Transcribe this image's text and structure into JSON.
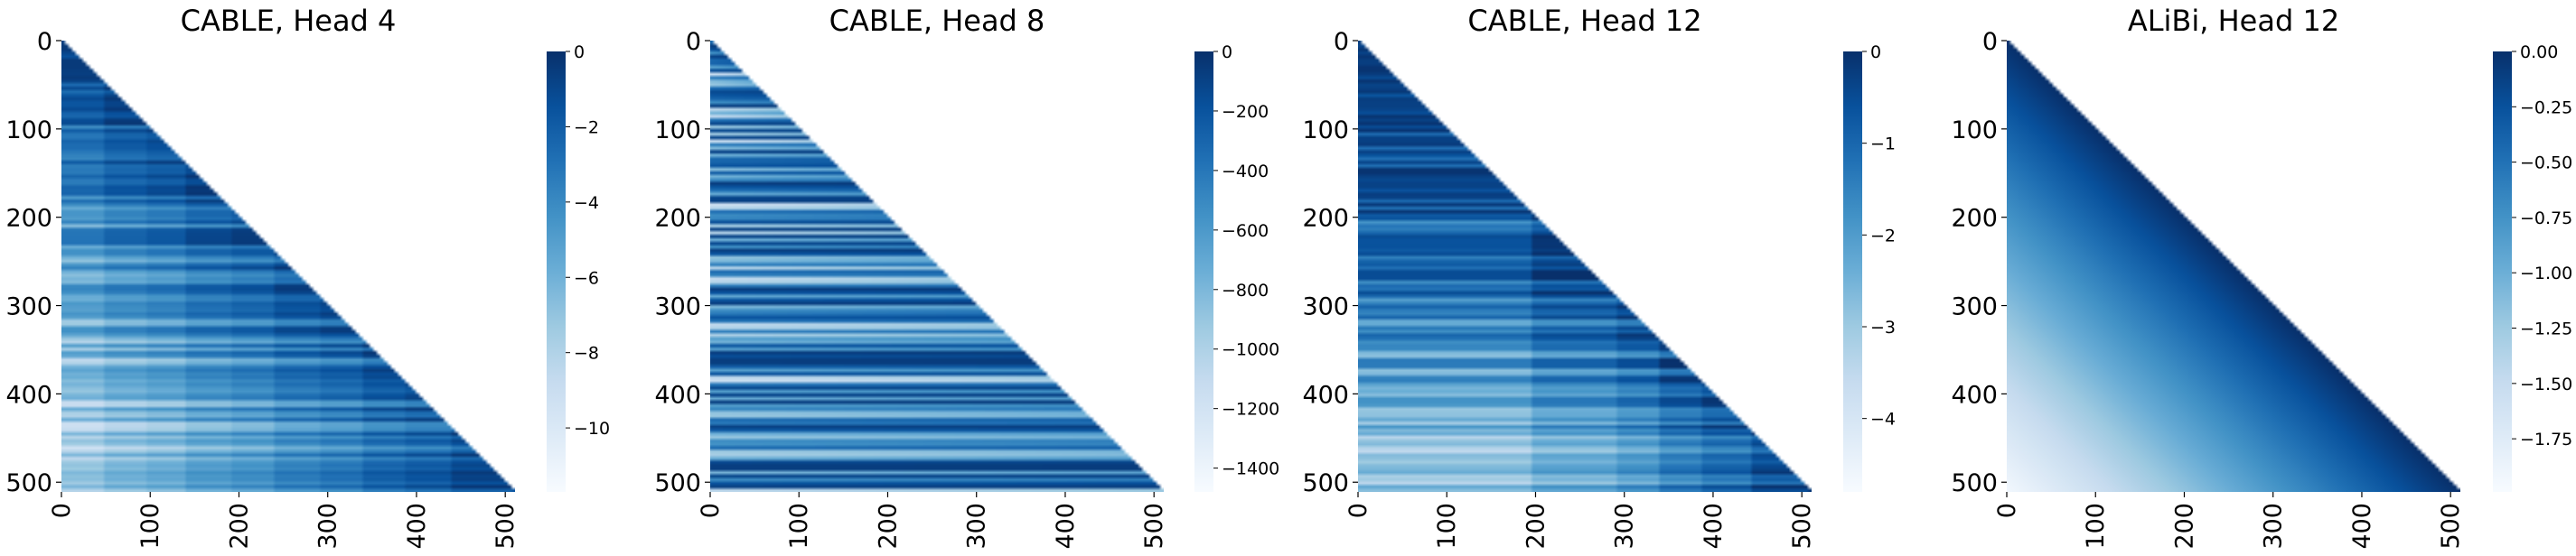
{
  "chart_data": [
    {
      "type": "heatmap",
      "title": "CABLE, Head 4",
      "x_ticks": [
        0,
        100,
        200,
        300,
        400,
        500
      ],
      "y_ticks": [
        0,
        100,
        200,
        300,
        400,
        500
      ],
      "xlim": [
        0,
        511
      ],
      "ylim": [
        0,
        511
      ],
      "mask": "lower-triangular (row >= column)",
      "colormap": "Blues_r",
      "colorbar": {
        "range": [
          -11.7,
          0
        ],
        "ticks": [
          0,
          -2,
          -4,
          -6,
          -8,
          -10
        ],
        "tick_labels": [
          "0",
          "−2",
          "−4",
          "−6",
          "−8",
          "−10"
        ]
      },
      "pattern": {
        "style": "block-steps",
        "steps": [
          0,
          45,
          95,
          140,
          190,
          240,
          290,
          340,
          390,
          440,
          510
        ],
        "row_texture": 0.85,
        "base": 0.02,
        "step_weight": 0.055,
        "seed": 4
      }
    },
    {
      "type": "heatmap",
      "title": "CABLE, Head 8",
      "x_ticks": [
        0,
        100,
        200,
        300,
        400,
        500
      ],
      "y_ticks": [
        0,
        100,
        200,
        300,
        400,
        500
      ],
      "xlim": [
        0,
        511
      ],
      "ylim": [
        0,
        511
      ],
      "mask": "lower-triangular (row >= column)",
      "colormap": "Blues_r",
      "colorbar": {
        "range": [
          -1480,
          0
        ],
        "ticks": [
          0,
          -200,
          -400,
          -600,
          -800,
          -1000,
          -1200,
          -1400
        ],
        "tick_labels": [
          "0",
          "−200",
          "−400",
          "−600",
          "−800",
          "−1000",
          "−1200",
          "−1400"
        ]
      },
      "pattern": {
        "style": "row-streaks",
        "steps": [],
        "row_texture": 1.0,
        "base": 0.05,
        "step_weight": 0,
        "seed": 8
      }
    },
    {
      "type": "heatmap",
      "title": "CABLE, Head 12",
      "x_ticks": [
        0,
        100,
        200,
        300,
        400,
        500
      ],
      "y_ticks": [
        0,
        100,
        200,
        300,
        400,
        500
      ],
      "xlim": [
        0,
        511
      ],
      "ylim": [
        0,
        511
      ],
      "mask": "lower-triangular (row >= column)",
      "colormap": "Blues_r",
      "colorbar": {
        "range": [
          -4.8,
          0
        ],
        "ticks": [
          0,
          -1,
          -2,
          -3,
          -4
        ],
        "tick_labels": [
          "0",
          "−1",
          "−2",
          "−3",
          "−4"
        ]
      },
      "pattern": {
        "style": "block-steps",
        "steps": [
          0,
          195,
          290,
          340,
          390,
          445,
          510
        ],
        "row_texture": 0.8,
        "base": 0.0,
        "step_weight": 0.09,
        "seed": 12
      }
    },
    {
      "type": "heatmap",
      "title": "ALiBi, Head 12",
      "x_ticks": [
        0,
        100,
        200,
        300,
        400,
        500
      ],
      "y_ticks": [
        0,
        100,
        200,
        300,
        400,
        500
      ],
      "xlim": [
        0,
        511
      ],
      "ylim": [
        0,
        511
      ],
      "mask": "lower-triangular (row >= column)",
      "colormap": "Blues_r",
      "colorbar": {
        "range": [
          -1.99,
          0
        ],
        "ticks": [
          0,
          -0.25,
          -0.5,
          -0.75,
          -1.0,
          -1.25,
          -1.5,
          -1.75
        ],
        "tick_labels": [
          "0.00",
          "−0.25",
          "−0.50",
          "−0.75",
          "−1.00",
          "−1.25",
          "−1.50",
          "−1.75"
        ]
      },
      "pattern": {
        "style": "linear-distance",
        "steps": [],
        "row_texture": 0,
        "base": 0,
        "step_weight": 0,
        "seed": 12
      }
    }
  ]
}
